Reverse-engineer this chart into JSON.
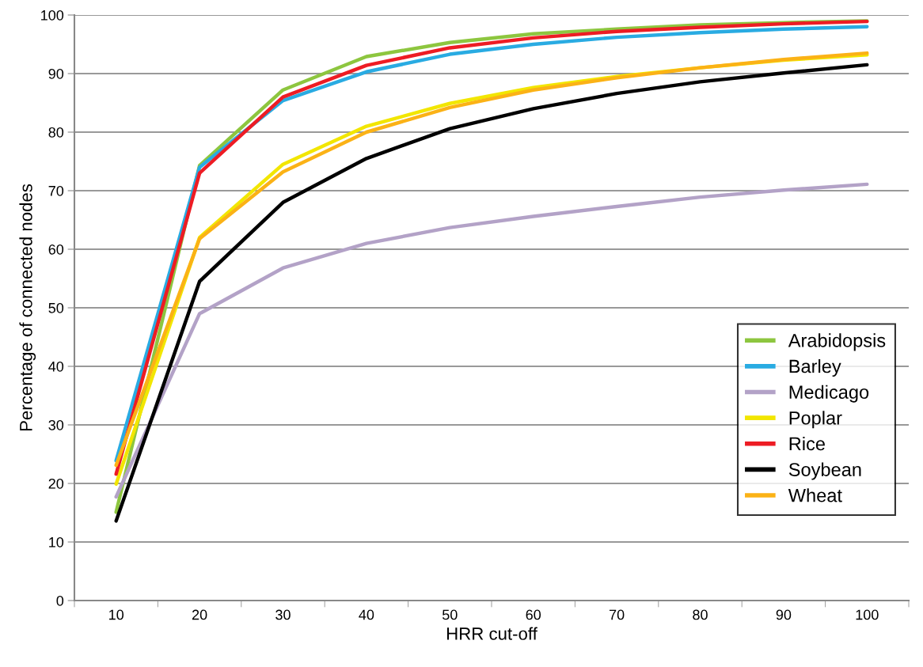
{
  "chart_data": {
    "type": "line",
    "xlabel": "HRR cut-off",
    "ylabel": "Percentage of connected nodes",
    "categories": [
      "10",
      "20",
      "30",
      "40",
      "50",
      "60",
      "70",
      "80",
      "90",
      "100"
    ],
    "series": [
      {
        "name": "Arabidopsis",
        "color": "#8dc63f",
        "values": [
          15.1,
          74.3,
          87.2,
          92.9,
          95.3,
          96.8,
          97.6,
          98.3,
          98.7,
          99.0
        ]
      },
      {
        "name": "Barley",
        "color": "#29abe2",
        "values": [
          23.9,
          74.0,
          85.4,
          90.3,
          93.3,
          95.0,
          96.2,
          97.0,
          97.6,
          98.0
        ]
      },
      {
        "name": "Medicago",
        "color": "#b3a2c7",
        "values": [
          17.7,
          49.0,
          56.8,
          61.0,
          63.7,
          65.6,
          67.3,
          68.9,
          70.1,
          71.1
        ]
      },
      {
        "name": "Poplar",
        "color": "#f2e600",
        "values": [
          19.9,
          62.0,
          74.5,
          81.0,
          84.9,
          87.6,
          89.5,
          91.0,
          92.3,
          93.2
        ]
      },
      {
        "name": "Rice",
        "color": "#ed1c24",
        "values": [
          21.6,
          73.0,
          86.0,
          91.4,
          94.4,
          96.1,
          97.2,
          97.9,
          98.5,
          98.9
        ]
      },
      {
        "name": "Soybean",
        "color": "#000000",
        "values": [
          13.6,
          54.5,
          68.0,
          75.5,
          80.6,
          84.0,
          86.6,
          88.6,
          90.1,
          91.5
        ]
      },
      {
        "name": "Wheat",
        "color": "#fbb216",
        "values": [
          23.1,
          61.8,
          73.2,
          80.0,
          84.2,
          87.2,
          89.3,
          91.0,
          92.4,
          93.5
        ]
      }
    ],
    "ylim": [
      0,
      100
    ],
    "yticks": [
      0,
      10,
      20,
      30,
      40,
      50,
      60,
      70,
      80,
      90,
      100
    ],
    "grid": "y",
    "legend": "right",
    "marker": "none",
    "line_style": "solid"
  }
}
